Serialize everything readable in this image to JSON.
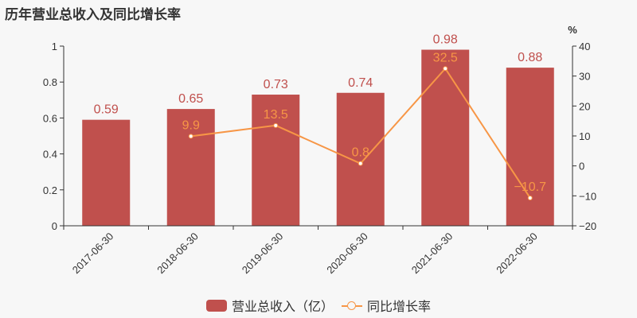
{
  "title": "历年营业总收入及同比增长率",
  "colors": {
    "bar": "#c0504d",
    "line": "#f79646",
    "axis": "#333333",
    "background": "#f7f7f7"
  },
  "legend": {
    "bar_label": "营业总收入（亿）",
    "line_label": "同比增长率"
  },
  "right_axis_unit": "%",
  "chart_data": {
    "type": "bar+line",
    "title": "历年营业总收入及同比增长率",
    "categories": [
      "2017-06-30",
      "2018-06-30",
      "2019-06-30",
      "2020-06-30",
      "2021-06-30",
      "2022-06-30"
    ],
    "series": [
      {
        "name": "营业总收入（亿）",
        "type": "bar",
        "axis": "left",
        "values": [
          0.59,
          0.65,
          0.73,
          0.74,
          0.98,
          0.88
        ]
      },
      {
        "name": "同比增长率",
        "type": "line",
        "axis": "right",
        "values": [
          null,
          9.9,
          13.5,
          0.8,
          32.5,
          -10.7
        ]
      }
    ],
    "left_axis": {
      "ylim": [
        0,
        1
      ],
      "ticks": [
        "0",
        "0.2",
        "0.4",
        "0.6",
        "0.8",
        "1"
      ]
    },
    "right_axis": {
      "ylim": [
        -20,
        40
      ],
      "label": "%",
      "ticks": [
        "−20",
        "−10",
        "0",
        "10",
        "20",
        "30",
        "40"
      ]
    },
    "xlabel": "",
    "grid": false,
    "legend_position": "bottom"
  }
}
